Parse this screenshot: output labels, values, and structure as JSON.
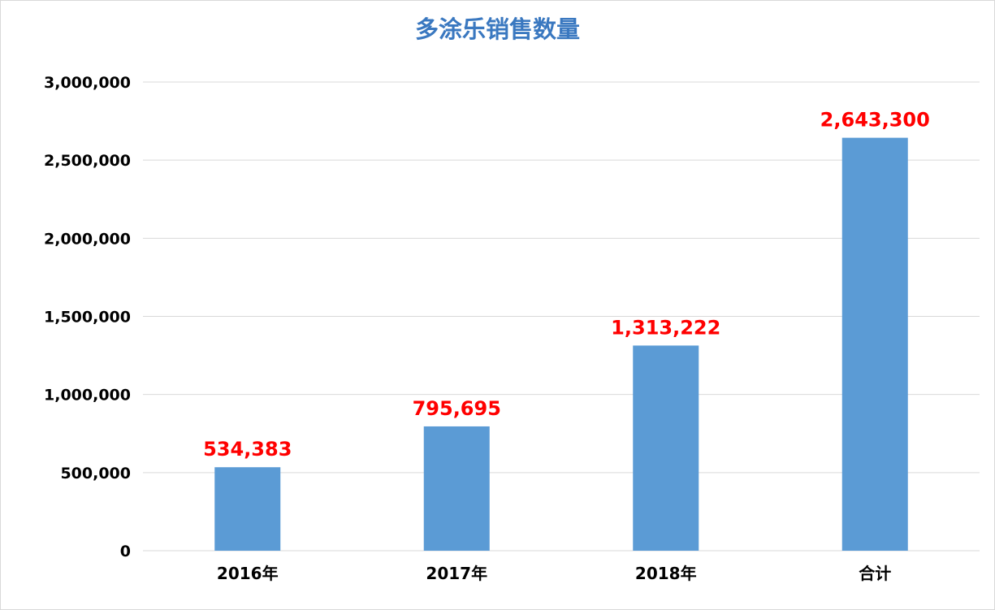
{
  "chart_data": {
    "type": "bar",
    "title": "多涂乐销售数量",
    "categories": [
      "2016年",
      "2017年",
      "2018年",
      "合计"
    ],
    "values": [
      534383,
      795695,
      1313222,
      2643300
    ],
    "data_labels": [
      "534,383",
      "795,695",
      "1,313,222",
      "2,643,300"
    ],
    "ylim": [
      0,
      3000000
    ],
    "yticks": [
      0,
      500000,
      1000000,
      1500000,
      2000000,
      2500000,
      3000000
    ],
    "ytick_labels": [
      "0",
      "500,000",
      "1,000,000",
      "1,500,000",
      "2,000,000",
      "2,500,000",
      "3,000,000"
    ],
    "grid": true,
    "legend": "none",
    "colors": {
      "bar": "#5b9bd5",
      "data_label": "#ff0000",
      "title": "#3a78c0",
      "grid": "#d9d9d9"
    }
  }
}
